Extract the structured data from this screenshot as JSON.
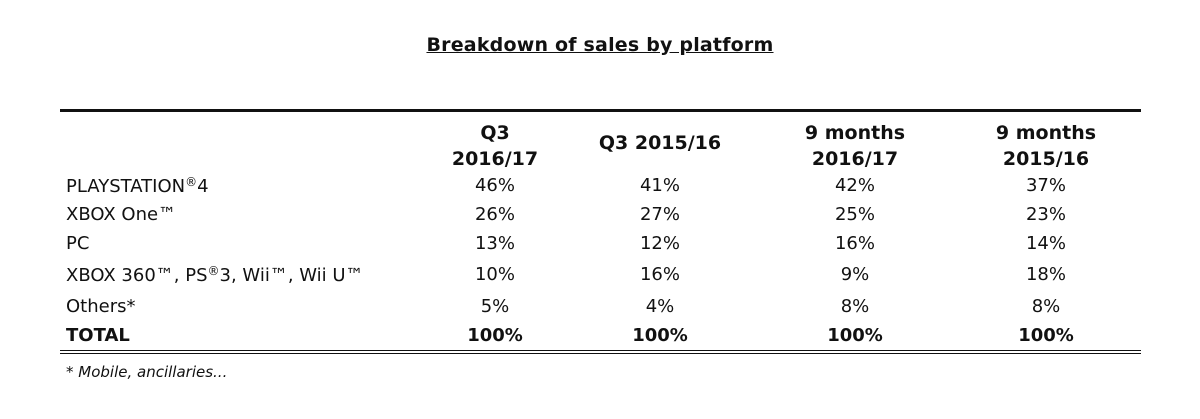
{
  "title": "Breakdown of sales by platform",
  "columns": [
    {
      "line1": "Q3",
      "line2": "2016/17"
    },
    {
      "line1": "Q3 2015/16",
      "line2": ""
    },
    {
      "line1": "9 months",
      "line2": "2016/17"
    },
    {
      "line1": "9 months",
      "line2": "2015/16"
    }
  ],
  "rows": [
    {
      "label": "PLAYSTATION",
      "label_sup": "®",
      "label_tail": "4",
      "values": [
        "46%",
        "41%",
        "42%",
        "37%"
      ]
    },
    {
      "label": "XBOX One™",
      "label_sup": "",
      "label_tail": "",
      "values": [
        "26%",
        "27%",
        "25%",
        "23%"
      ]
    },
    {
      "label": "PC",
      "label_sup": "",
      "label_tail": "",
      "values": [
        "13%",
        "12%",
        "16%",
        "14%"
      ]
    },
    {
      "label": "XBOX 360™, PS",
      "label_sup": "®",
      "label_tail": "3, Wii™, Wii U™",
      "values": [
        "10%",
        "16%",
        "9%",
        "18%"
      ]
    },
    {
      "label": "Others*",
      "label_sup": "",
      "label_tail": "",
      "values": [
        "5%",
        "4%",
        "8%",
        "8%"
      ]
    }
  ],
  "total": {
    "label": "TOTAL",
    "values": [
      "100%",
      "100%",
      "100%",
      "100%"
    ]
  },
  "footnote": "* Mobile, ancillaries..."
}
